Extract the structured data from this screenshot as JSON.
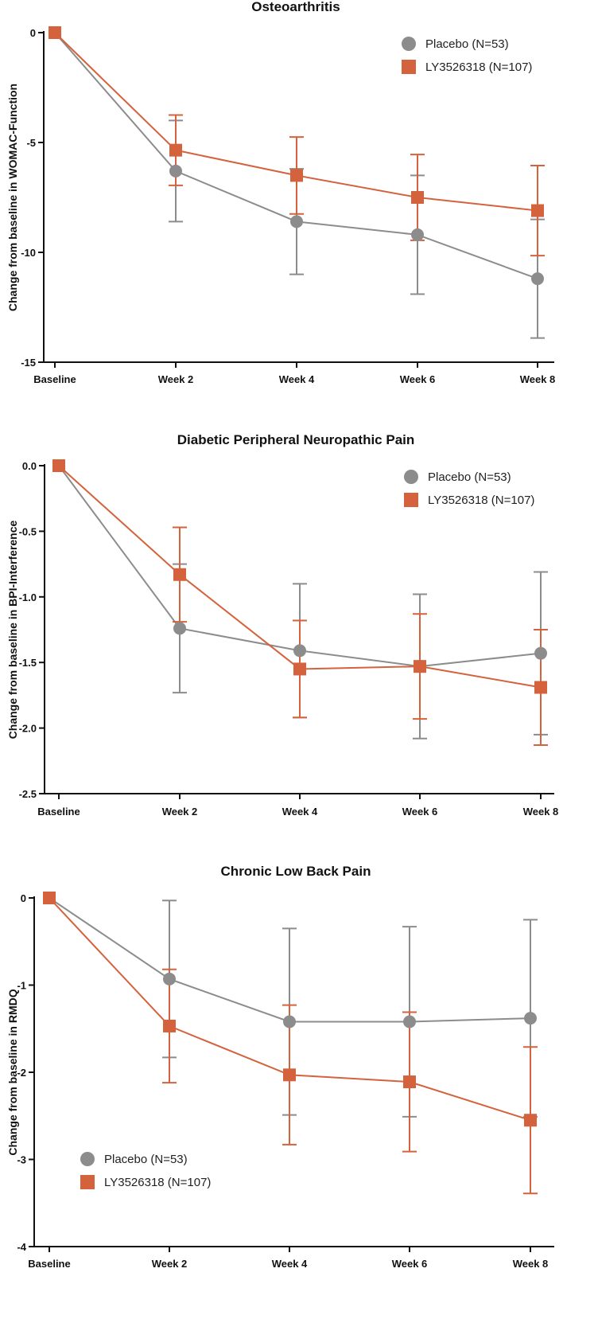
{
  "colors": {
    "placebo": "#8c8c8c",
    "drug": "#d4623d"
  },
  "chart_data": [
    {
      "type": "line",
      "title": "Osteoarthritis",
      "ylabel": "Change from baseline in WOMAC-Function",
      "xlabel": "",
      "categories": [
        "Baseline",
        "Week 2",
        "Week 4",
        "Week 6",
        "Week 8"
      ],
      "ylim": [
        -15,
        0
      ],
      "yticks": [
        0,
        -5,
        -10,
        -15
      ],
      "ytick_labels": [
        "0",
        "-5",
        "-10",
        "-15"
      ],
      "legend_position": "top-right",
      "series": [
        {
          "name": "Placebo (N=53)",
          "marker": "circle",
          "values": [
            0,
            -6.3,
            -8.6,
            -9.2,
            -11.2
          ],
          "err": [
            0,
            2.3,
            2.4,
            2.7,
            2.7
          ]
        },
        {
          "name": "LY3526318 (N=107)",
          "marker": "square",
          "values": [
            0,
            -5.35,
            -6.5,
            -7.5,
            -8.1
          ],
          "err": [
            0,
            1.6,
            1.75,
            1.95,
            2.05
          ]
        }
      ]
    },
    {
      "type": "line",
      "title": "Diabetic Peripheral Neuropathic Pain",
      "ylabel": "Change from baseline in BPI-Interference",
      "xlabel": "",
      "categories": [
        "Baseline",
        "Week 2",
        "Week 4",
        "Week 6",
        "Week 8"
      ],
      "ylim": [
        -2.5,
        0
      ],
      "yticks": [
        0,
        -0.5,
        -1,
        -1.5,
        -2,
        -2.5
      ],
      "ytick_labels": [
        "0.0",
        "-0.5",
        "-1.0",
        "-1.5",
        "-2.0",
        "-2.5"
      ],
      "legend_position": "top-right",
      "series": [
        {
          "name": "Placebo (N=53)",
          "marker": "circle",
          "values": [
            0,
            -1.24,
            -1.41,
            -1.53,
            -1.43
          ],
          "err": [
            0,
            0.49,
            0.51,
            0.55,
            0.62
          ]
        },
        {
          "name": "LY3526318 (N=107)",
          "marker": "square",
          "values": [
            0,
            -0.83,
            -1.55,
            -1.53,
            -1.69
          ],
          "err": [
            0,
            0.36,
            0.37,
            0.4,
            0.44
          ]
        }
      ]
    },
    {
      "type": "line",
      "title": "Chronic Low Back Pain",
      "ylabel": "Change from baseline in RMDQ",
      "xlabel": "",
      "categories": [
        "Baseline",
        "Week 2",
        "Week 4",
        "Week 6",
        "Week 8"
      ],
      "ylim": [
        -4,
        0
      ],
      "yticks": [
        0,
        -1,
        -2,
        -3,
        -4
      ],
      "ytick_labels": [
        "0",
        "-1",
        "-2",
        "-3",
        "-4"
      ],
      "legend_position": "bottom-left",
      "series": [
        {
          "name": "Placebo (N=53)",
          "marker": "circle",
          "values": [
            0,
            -0.93,
            -1.42,
            -1.42,
            -1.38
          ],
          "err": [
            0,
            0.9,
            1.07,
            1.09,
            1.13
          ]
        },
        {
          "name": "LY3526318 (N=107)",
          "marker": "square",
          "values": [
            0,
            -1.47,
            -2.03,
            -2.11,
            -2.55
          ],
          "err": [
            0,
            0.65,
            0.8,
            0.8,
            0.84
          ]
        }
      ]
    }
  ]
}
